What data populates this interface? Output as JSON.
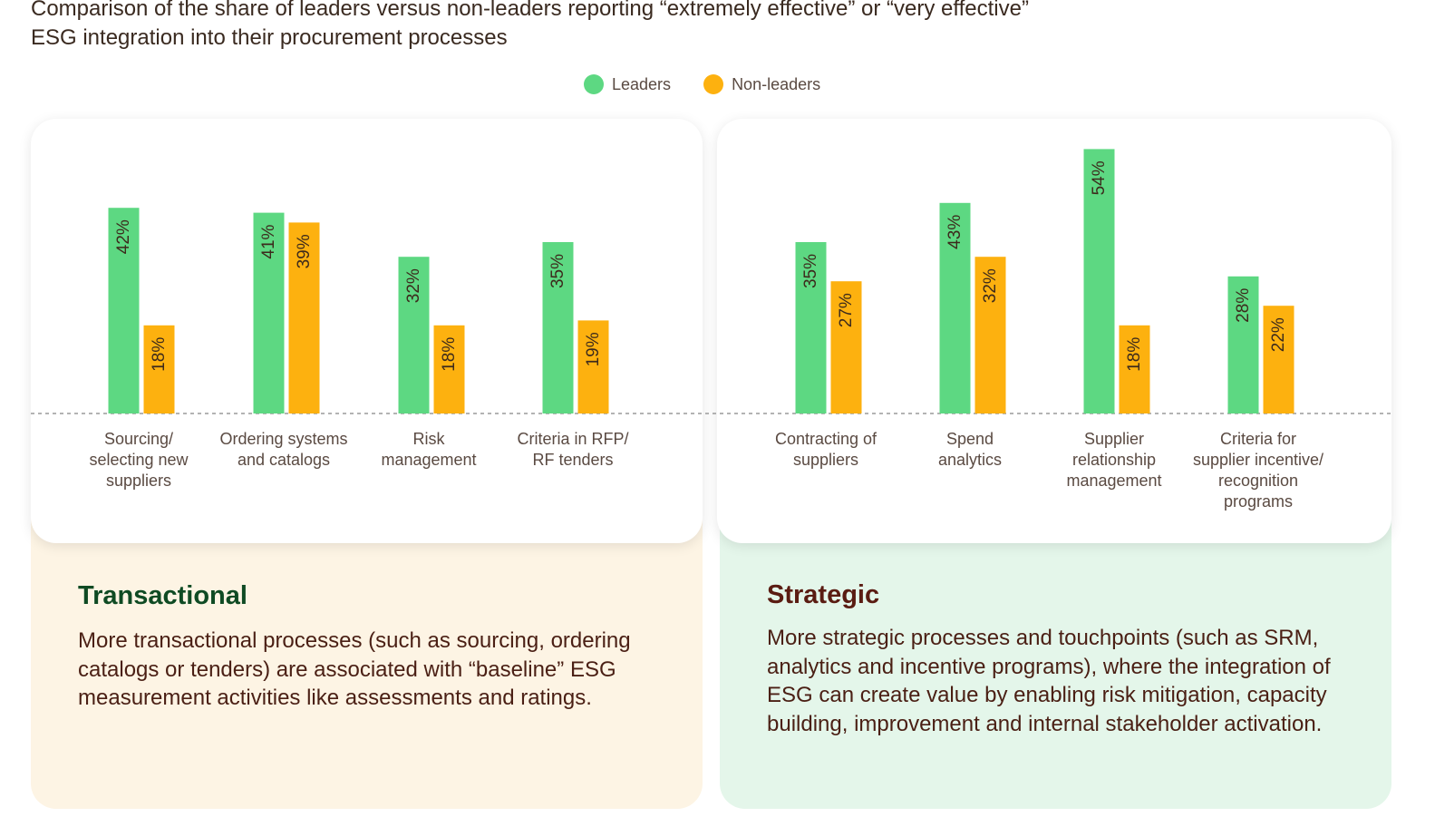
{
  "title_lines": [
    "Comparison of the share of leaders versus non-leaders reporting “extremely effective” or “very effective”",
    "ESG integration into their procurement processes"
  ],
  "colors": {
    "leaders": "#5dd882",
    "non_leaders": "#fdb10f",
    "transactional_title": "#0f4a23",
    "strategic_title": "#5a1c12"
  },
  "legend": [
    {
      "label": "Leaders",
      "color": "#5dd882"
    },
    {
      "label": "Non-leaders",
      "color": "#fdb10f"
    }
  ],
  "chart_data": {
    "type": "bar",
    "title": "Comparison of the share of leaders versus non-leaders reporting “extremely effective” or “very effective” ESG integration into their procurement processes",
    "unit": "%",
    "value_label_suffix": "%",
    "ylim": [
      0,
      60
    ],
    "legend_position": "top-center",
    "categories": [
      [
        "Sourcing/",
        "selecting new",
        "suppliers"
      ],
      [
        "Ordering systems",
        "and catalogs"
      ],
      [
        "Risk",
        "management"
      ],
      [
        "Criteria in RFP/",
        "RF tenders"
      ],
      [
        "Contracting of",
        "suppliers"
      ],
      [
        "Spend",
        "analytics"
      ],
      [
        "Supplier",
        "relationship",
        "management"
      ],
      [
        "Criteria for",
        "supplier incentive/",
        "recognition",
        "programs"
      ]
    ],
    "groups": [
      {
        "name": "Transactional",
        "category_indices": [
          0,
          1,
          2,
          3
        ]
      },
      {
        "name": "Strategic",
        "category_indices": [
          4,
          5,
          6,
          7
        ]
      }
    ],
    "series": [
      {
        "name": "Leaders",
        "values": [
          42,
          41,
          32,
          35,
          35,
          43,
          54,
          28
        ]
      },
      {
        "name": "Non-leaders",
        "values": [
          18,
          39,
          18,
          19,
          27,
          32,
          18,
          22
        ]
      }
    ]
  },
  "sections": {
    "transactional": {
      "title": "Transactional",
      "body": "More transactional processes (such as sourcing, ordering catalogs or tenders) are associated with “baseline” ESG measurement activities like assessments and ratings."
    },
    "strategic": {
      "title": "Strategic",
      "body": "More strategic processes and touchpoints (such as SRM, analytics and incentive programs), where the integration of ESG can create value by enabling risk mitigation, capacity building, improvement and internal stakeholder activation."
    }
  }
}
